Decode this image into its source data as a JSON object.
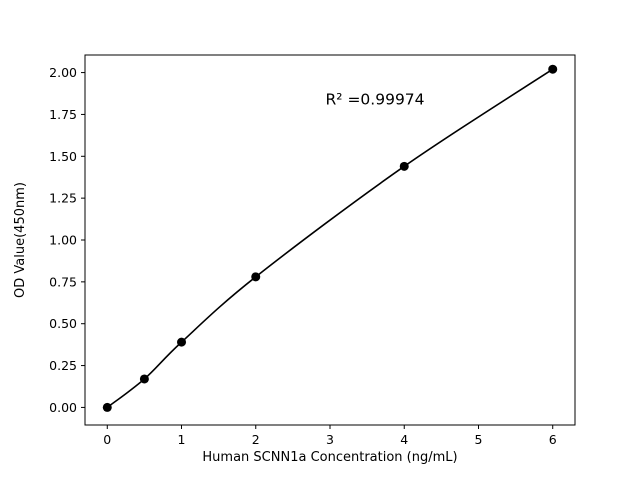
{
  "figure": {
    "background_color": "#ffffff"
  },
  "chart_data": {
    "type": "scatter",
    "title": "",
    "xlabel": "Human SCNN1a Concentration (ng/mL)",
    "ylabel": "OD Value(450nm)",
    "x": [
      0,
      0.5,
      1,
      2,
      4,
      6
    ],
    "y": [
      0.0,
      0.17,
      0.39,
      0.78,
      1.44,
      2.02
    ],
    "xlim": [
      -0.3,
      6.3
    ],
    "ylim": [
      -0.105,
      2.105
    ],
    "xticks": {
      "values": [
        0,
        1,
        2,
        3,
        4,
        5,
        6
      ],
      "labels": [
        "0",
        "1",
        "2",
        "3",
        "4",
        "5",
        "6"
      ]
    },
    "yticks": {
      "values": [
        0.0,
        0.25,
        0.5,
        0.75,
        1.0,
        1.25,
        1.5,
        1.75,
        2.0
      ],
      "labels": [
        "0.00",
        "0.25",
        "0.50",
        "0.75",
        "1.00",
        "1.25",
        "1.50",
        "1.75",
        "2.00"
      ]
    },
    "annotation": {
      "text": "R² =0.99974",
      "x": 2.94,
      "y": 1.81
    },
    "line_color": "#000000",
    "marker_color": "#000000",
    "marker_radius": 4.5,
    "line_width": 1.6,
    "grid": false,
    "legend": null
  }
}
